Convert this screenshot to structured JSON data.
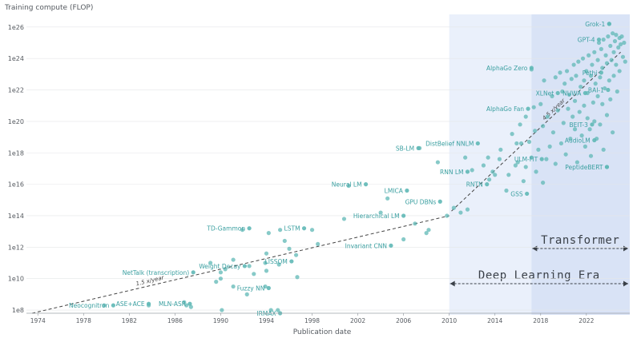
{
  "chart_data": {
    "type": "scatter",
    "ylabel": "Training compute (FLOP)",
    "xlabel": "Publication date",
    "x_ticks": [
      "1974",
      "1978",
      "1982",
      "1986",
      "1990",
      "1994",
      "1998",
      "2002",
      "2006",
      "2010",
      "2014",
      "2018",
      "2022"
    ],
    "y_ticks": [
      "1e8",
      "1e10",
      "1e12",
      "1e14",
      "1e16",
      "1e18",
      "1e20",
      "1e22",
      "1e24",
      "1e26"
    ],
    "xlim": [
      1973,
      2025.8
    ],
    "ylim_log10": [
      7.8,
      26.6
    ],
    "y_scale": "log",
    "colors": {
      "point": "#5fb8b6",
      "label": "#3a9fa0",
      "deep_learning_shade": "#eaf0fb",
      "transformer_shade": "#d9e3f6",
      "trend": "#444444"
    },
    "eras": [
      {
        "label": "Deep Learning Era",
        "start": 2010,
        "end": 2025.8
      },
      {
        "label": "Transformer",
        "start": 2017.2,
        "end": 2025.8
      }
    ],
    "trends": [
      {
        "label": "1.5 x/year",
        "x": [
          1973.5,
          2010
        ],
        "log10_y": [
          7.8,
          14.0
        ]
      },
      {
        "label": "4.5 x/year",
        "x": [
          2010.2,
          2025
        ],
        "log10_y": [
          14.3,
          24.4
        ]
      }
    ],
    "labeled_points": [
      {
        "label": "Neocognitron",
        "x": 1980.6,
        "log10_y": 8.3
      },
      {
        "label": "ASE+ACE",
        "x": 1983.7,
        "log10_y": 8.4
      },
      {
        "label": "MLN-ASR",
        "x": 1987.3,
        "log10_y": 8.4
      },
      {
        "label": "NetTalk (transcription)",
        "x": 1987.6,
        "log10_y": 10.4
      },
      {
        "label": "Weight Decay",
        "x": 1992.1,
        "log10_y": 10.8
      },
      {
        "label": "Fuzzy NN",
        "x": 1994.2,
        "log10_y": 9.4
      },
      {
        "label": "IRMAX",
        "x": 1995.2,
        "log10_y": 7.8
      },
      {
        "label": "TD-Gammon",
        "x": 1992.5,
        "log10_y": 13.2
      },
      {
        "label": "LISSOM",
        "x": 1996.2,
        "log10_y": 11.1
      },
      {
        "label": "LSTM",
        "x": 1997.3,
        "log10_y": 13.2
      },
      {
        "label": "Neural LM",
        "x": 2002.7,
        "log10_y": 16.0
      },
      {
        "label": "LMICA",
        "x": 2006.3,
        "log10_y": 15.6
      },
      {
        "label": "Hierarchical LM",
        "x": 2006.0,
        "log10_y": 14.0
      },
      {
        "label": "Invariant CNN",
        "x": 2004.9,
        "log10_y": 12.1
      },
      {
        "label": "GPU DBNs",
        "x": 2009.2,
        "log10_y": 14.9
      },
      {
        "label": "SB-LM",
        "x": 2007.3,
        "log10_y": 18.3
      },
      {
        "label": "DistBelief NNLM",
        "x": 2012.5,
        "log10_y": 18.6
      },
      {
        "label": "RNN LM",
        "x": 2011.6,
        "log10_y": 16.8
      },
      {
        "label": "RNTN",
        "x": 2013.3,
        "log10_y": 16.0
      },
      {
        "label": "GSS",
        "x": 2016.8,
        "log10_y": 15.4
      },
      {
        "label": "ULM-FiT",
        "x": 2018.1,
        "log10_y": 17.6
      },
      {
        "label": "AlphaGo Zero",
        "x": 2017.2,
        "log10_y": 23.4
      },
      {
        "label": "AlphaGo Fan",
        "x": 2016.9,
        "log10_y": 20.8
      },
      {
        "label": "XLNet",
        "x": 2019.5,
        "log10_y": 21.8
      },
      {
        "label": "NUWA",
        "x": 2021.9,
        "log10_y": 21.8
      },
      {
        "label": "BEIT-3",
        "x": 2022.5,
        "log10_y": 19.8
      },
      {
        "label": "AudioLM",
        "x": 2022.7,
        "log10_y": 18.8
      },
      {
        "label": "PeptideBERT",
        "x": 2023.8,
        "log10_y": 17.1
      },
      {
        "label": "GPT-4",
        "x": 2023.1,
        "log10_y": 25.2
      },
      {
        "label": "Grok-1",
        "x": 2024.0,
        "log10_y": 26.2
      },
      {
        "label": "Pethi",
        "x": 2023.3,
        "log10_y": 23.1
      },
      {
        "label": "BAI-1",
        "x": 2023.9,
        "log10_y": 22.0
      }
    ],
    "points": [
      [
        1979.8,
        8.3
      ],
      [
        1983.7,
        8.3
      ],
      [
        1986.8,
        8.5
      ],
      [
        1987.0,
        8.3
      ],
      [
        1987.4,
        8.2
      ],
      [
        1990.1,
        8.0
      ],
      [
        1994.4,
        8.0
      ],
      [
        1995.0,
        8.0
      ],
      [
        1989.6,
        9.8
      ],
      [
        1990.0,
        10.4
      ],
      [
        1990.0,
        10.0
      ],
      [
        1990.4,
        10.6
      ],
      [
        1991.1,
        9.5
      ],
      [
        1992.3,
        9.0
      ],
      [
        1992.9,
        10.3
      ],
      [
        1993.9,
        9.5
      ],
      [
        1994.0,
        10.5
      ],
      [
        1996.7,
        10.1
      ],
      [
        1989.1,
        11.0
      ],
      [
        1991.1,
        11.2
      ],
      [
        1992.5,
        10.8
      ],
      [
        1993.9,
        11.0
      ],
      [
        1994.0,
        11.6
      ],
      [
        1995.1,
        10.9
      ],
      [
        1996.0,
        11.9
      ],
      [
        1996.6,
        11.5
      ],
      [
        1998.5,
        12.2
      ],
      [
        1991.9,
        13.1
      ],
      [
        1994.2,
        12.9
      ],
      [
        1995.2,
        13.1
      ],
      [
        1995.6,
        12.4
      ],
      [
        1998.0,
        13.1
      ],
      [
        2000.8,
        13.8
      ],
      [
        2001.2,
        15.9
      ],
      [
        2004.0,
        14.2
      ],
      [
        2004.6,
        15.1
      ],
      [
        2006.0,
        12.5
      ],
      [
        2007.0,
        13.5
      ],
      [
        2008.0,
        12.9
      ],
      [
        2008.2,
        13.1
      ],
      [
        2009.8,
        14.0
      ],
      [
        2007.4,
        18.3
      ],
      [
        2009.0,
        17.4
      ],
      [
        2010.4,
        14.5
      ],
      [
        2011.0,
        14.2
      ],
      [
        2011.6,
        14.4
      ],
      [
        2011.4,
        17.7
      ],
      [
        2012.0,
        16.9
      ],
      [
        2013.0,
        17.2
      ],
      [
        2013.5,
        16.3
      ],
      [
        2013.4,
        17.7
      ],
      [
        2013.8,
        16.8
      ],
      [
        2014.5,
        18.2
      ],
      [
        2014.0,
        16.6
      ],
      [
        2014.4,
        17.6
      ],
      [
        2015.0,
        15.6
      ],
      [
        2015.2,
        16.6
      ],
      [
        2015.8,
        17.2
      ],
      [
        2015.9,
        18.6
      ],
      [
        2015.5,
        19.2
      ],
      [
        2016.0,
        17.4
      ],
      [
        2016.2,
        19.8
      ],
      [
        2016.3,
        18.6
      ],
      [
        2016.7,
        17.1
      ],
      [
        2016.7,
        20.3
      ],
      [
        2016.5,
        16.2
      ],
      [
        2017.0,
        18.7
      ],
      [
        2017.2,
        17.7
      ],
      [
        2017.2,
        23.3
      ],
      [
        2017.4,
        20.9
      ],
      [
        2017.6,
        16.8
      ],
      [
        2017.5,
        19.4
      ],
      [
        2017.8,
        18.2
      ],
      [
        2018.0,
        21.1
      ],
      [
        2018.2,
        19.7
      ],
      [
        2018.2,
        16.1
      ],
      [
        2018.3,
        22.6
      ],
      [
        2018.5,
        17.6
      ],
      [
        2018.6,
        20.3
      ],
      [
        2018.8,
        18.4
      ],
      [
        2019.0,
        21.6
      ],
      [
        2019.1,
        19.3
      ],
      [
        2019.3,
        22.8
      ],
      [
        2019.3,
        17.3
      ],
      [
        2019.5,
        20.7
      ],
      [
        2019.7,
        23.1
      ],
      [
        2019.8,
        18.6
      ],
      [
        2019.9,
        21.9
      ],
      [
        2020.0,
        19.9
      ],
      [
        2020.1,
        22.4
      ],
      [
        2020.2,
        17.9
      ],
      [
        2020.3,
        23.2
      ],
      [
        2020.4,
        20.8
      ],
      [
        2020.5,
        21.7
      ],
      [
        2020.6,
        18.9
      ],
      [
        2020.7,
        22.7
      ],
      [
        2020.8,
        20.3
      ],
      [
        2020.9,
        23.6
      ],
      [
        2021.0,
        19.5
      ],
      [
        2021.0,
        21.3
      ],
      [
        2021.1,
        22.9
      ],
      [
        2021.2,
        17.4
      ],
      [
        2021.3,
        23.8
      ],
      [
        2021.4,
        20.6
      ],
      [
        2021.5,
        22.2
      ],
      [
        2021.6,
        19.1
      ],
      [
        2021.7,
        24.0
      ],
      [
        2021.8,
        21.0
      ],
      [
        2021.8,
        22.6
      ],
      [
        2021.9,
        18.4
      ],
      [
        2022.0,
        23.2
      ],
      [
        2022.1,
        20.2
      ],
      [
        2022.1,
        21.8
      ],
      [
        2022.2,
        24.2
      ],
      [
        2022.3,
        19.5
      ],
      [
        2022.4,
        22.9
      ],
      [
        2022.4,
        17.8
      ],
      [
        2022.5,
        23.6
      ],
      [
        2022.6,
        21.2
      ],
      [
        2022.7,
        24.4
      ],
      [
        2022.7,
        20.0
      ],
      [
        2022.8,
        22.4
      ],
      [
        2022.9,
        18.9
      ],
      [
        2023.0,
        23.9
      ],
      [
        2023.0,
        21.6
      ],
      [
        2023.1,
        25.0
      ],
      [
        2023.2,
        19.8
      ],
      [
        2023.2,
        22.8
      ],
      [
        2023.3,
        24.6
      ],
      [
        2023.4,
        21.1
      ],
      [
        2023.4,
        23.4
      ],
      [
        2023.5,
        18.2
      ],
      [
        2023.5,
        25.2
      ],
      [
        2023.6,
        22.1
      ],
      [
        2023.7,
        24.2
      ],
      [
        2023.8,
        20.4
      ],
      [
        2023.8,
        23.7
      ],
      [
        2023.8,
        17.1
      ],
      [
        2023.9,
        25.4
      ],
      [
        2024.0,
        22.6
      ],
      [
        2024.0,
        26.2
      ],
      [
        2024.1,
        24.8
      ],
      [
        2024.1,
        21.4
      ],
      [
        2024.2,
        23.9
      ],
      [
        2024.3,
        25.6
      ],
      [
        2024.3,
        19.3
      ],
      [
        2024.4,
        24.4
      ],
      [
        2024.4,
        22.9
      ],
      [
        2024.5,
        25.1
      ],
      [
        2024.6,
        23.6
      ],
      [
        2024.6,
        25.5
      ],
      [
        2024.7,
        21.9
      ],
      [
        2024.8,
        24.7
      ],
      [
        2024.9,
        25.3
      ],
      [
        2024.9,
        23.2
      ],
      [
        2025.0,
        24.9
      ],
      [
        2025.1,
        25.4
      ],
      [
        2025.2,
        24.1
      ],
      [
        2025.3,
        25.0
      ],
      [
        2025.4,
        23.8
      ]
    ]
  }
}
